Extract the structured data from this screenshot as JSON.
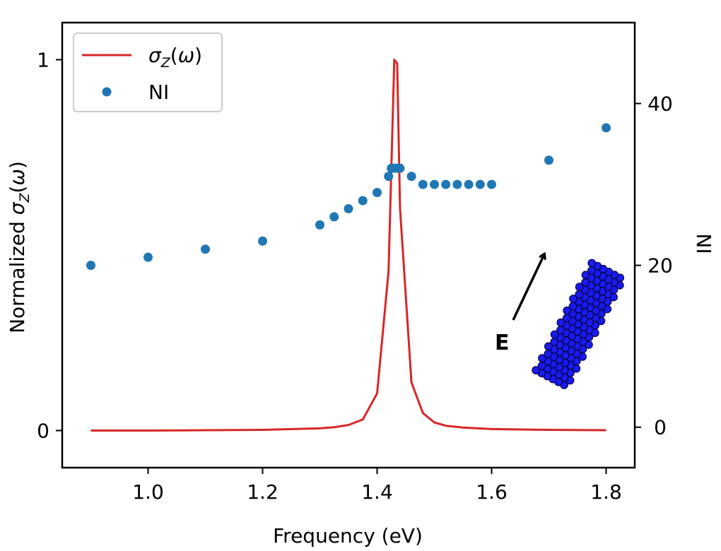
{
  "chart_data": {
    "type": "line",
    "xlabel": "Frequency (eV)",
    "ylabel_left": "Normalized σ_Z(ω)",
    "ylabel_right": "NI",
    "x_ticks": [
      "1.0",
      "1.2",
      "1.4",
      "1.6",
      "1.8"
    ],
    "y_left_ticks": [
      "0",
      "1"
    ],
    "y_right_ticks": [
      "0",
      "20",
      "40"
    ],
    "xlim": [
      0.85,
      1.85
    ],
    "ylim_left": [
      -0.1,
      1.1
    ],
    "ylim_right": [
      -5,
      50
    ],
    "legend": {
      "placement": "top-left",
      "sigma_label": "σZ(ω)",
      "ni_label": "NI"
    },
    "annotation": "E",
    "colors": {
      "sigma": "#d62728",
      "ni": "#1f77b4",
      "nanorod": "#1a1aee"
    },
    "series": [
      {
        "name": "σZ(ω)",
        "axis": "left",
        "style": "line",
        "x": [
          0.9,
          1.0,
          1.1,
          1.2,
          1.3,
          1.325,
          1.35,
          1.375,
          1.4,
          1.42,
          1.43,
          1.435,
          1.44,
          1.46,
          1.48,
          1.5,
          1.52,
          1.55,
          1.6,
          1.7,
          1.8
        ],
        "y": [
          0.0,
          0.0,
          0.001,
          0.002,
          0.006,
          0.009,
          0.015,
          0.03,
          0.1,
          0.43,
          1.0,
          0.99,
          0.6,
          0.13,
          0.047,
          0.022,
          0.013,
          0.008,
          0.004,
          0.002,
          0.001
        ]
      },
      {
        "name": "NI",
        "axis": "right",
        "style": "scatter",
        "x": [
          0.9,
          1.0,
          1.1,
          1.2,
          1.3,
          1.325,
          1.35,
          1.375,
          1.4,
          1.42,
          1.425,
          1.43,
          1.435,
          1.44,
          1.46,
          1.48,
          1.5,
          1.52,
          1.54,
          1.56,
          1.58,
          1.6,
          1.7,
          1.8
        ],
        "y": [
          20,
          21,
          22,
          23,
          25,
          26,
          27,
          28,
          29,
          31,
          32,
          32,
          32,
          32,
          31,
          30,
          30,
          30,
          30,
          30,
          30,
          30,
          33,
          37
        ]
      }
    ]
  }
}
